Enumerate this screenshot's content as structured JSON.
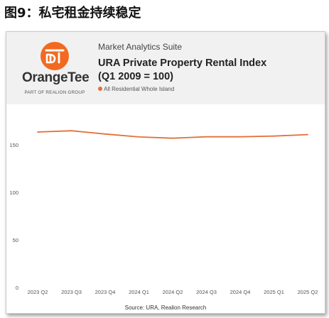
{
  "figure": {
    "title": "图9：私宅租金持续稳定"
  },
  "brand": {
    "logo_icon": "orange-circle-dt-icon",
    "name": "OrangeTee",
    "tagline": "PART OF REALION GROUP",
    "color": "#f26a21"
  },
  "header": {
    "suite": "Market Analytics Suite",
    "title_line1": "URA Private Property Rental Index",
    "title_line2": "(Q1 2009 = 100)"
  },
  "chart_data": {
    "type": "line",
    "categories": [
      "2023 Q2",
      "2023 Q3",
      "2023 Q4",
      "2024 Q1",
      "2024 Q2",
      "2024 Q3",
      "2024 Q4",
      "2025 Q1",
      "2025 Q2"
    ],
    "series": [
      {
        "name": "All Residential Whole Island",
        "color": "#e2703a",
        "values": [
          163.4,
          164.7,
          161.3,
          158.2,
          156.9,
          158.4,
          158.4,
          159.1,
          160.7
        ]
      }
    ],
    "yticks": [
      0,
      50,
      100,
      150
    ],
    "ylim": [
      0,
      185
    ],
    "grid": false,
    "legend_position": "top-left"
  },
  "footer": {
    "source": "Source: URA, Realion Research"
  }
}
